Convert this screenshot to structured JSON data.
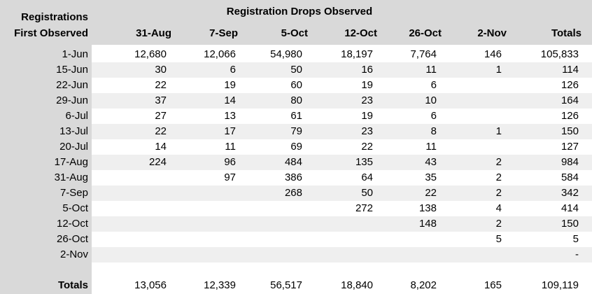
{
  "table": {
    "corner": [
      "Registrations",
      "First Observed"
    ],
    "group_title": "Registration Drops Observed",
    "columns": [
      "31-Aug",
      "7-Sep",
      "5-Oct",
      "12-Oct",
      "26-Oct",
      "2-Nov",
      "Totals"
    ],
    "rows": [
      {
        "label": "1-Jun",
        "cells": [
          "12,680",
          "12,066",
          "54,980",
          "18,197",
          "7,764",
          "146",
          "105,833"
        ]
      },
      {
        "label": "15-Jun",
        "cells": [
          "30",
          "6",
          "50",
          "16",
          "11",
          "1",
          "114"
        ]
      },
      {
        "label": "22-Jun",
        "cells": [
          "22",
          "19",
          "60",
          "19",
          "6",
          null,
          "126"
        ]
      },
      {
        "label": "29-Jun",
        "cells": [
          "37",
          "14",
          "80",
          "23",
          "10",
          null,
          "164"
        ]
      },
      {
        "label": "6-Jul",
        "cells": [
          "27",
          "13",
          "61",
          "19",
          "6",
          null,
          "126"
        ]
      },
      {
        "label": "13-Jul",
        "cells": [
          "22",
          "17",
          "79",
          "23",
          "8",
          "1",
          "150"
        ]
      },
      {
        "label": "20-Jul",
        "cells": [
          "14",
          "11",
          "69",
          "22",
          "11",
          null,
          "127"
        ]
      },
      {
        "label": "17-Aug",
        "cells": [
          "224",
          "96",
          "484",
          "135",
          "43",
          "2",
          "984"
        ]
      },
      {
        "label": "31-Aug",
        "cells": [
          null,
          "97",
          "386",
          "64",
          "35",
          "2",
          "584"
        ]
      },
      {
        "label": "7-Sep",
        "cells": [
          null,
          null,
          "268",
          "50",
          "22",
          "2",
          "342"
        ]
      },
      {
        "label": "5-Oct",
        "cells": [
          null,
          null,
          null,
          "272",
          "138",
          "4",
          "414"
        ]
      },
      {
        "label": "12-Oct",
        "cells": [
          null,
          null,
          null,
          null,
          "148",
          "2",
          "150"
        ]
      },
      {
        "label": "26-Oct",
        "cells": [
          null,
          null,
          null,
          null,
          null,
          "5",
          "5"
        ]
      },
      {
        "label": "2-Nov",
        "cells": [
          null,
          null,
          null,
          null,
          null,
          null,
          "-"
        ]
      }
    ],
    "totals": {
      "label": "Totals",
      "cells": [
        "13,056",
        "12,339",
        "56,517",
        "18,840",
        "8,202",
        "165",
        "109,119"
      ]
    }
  }
}
